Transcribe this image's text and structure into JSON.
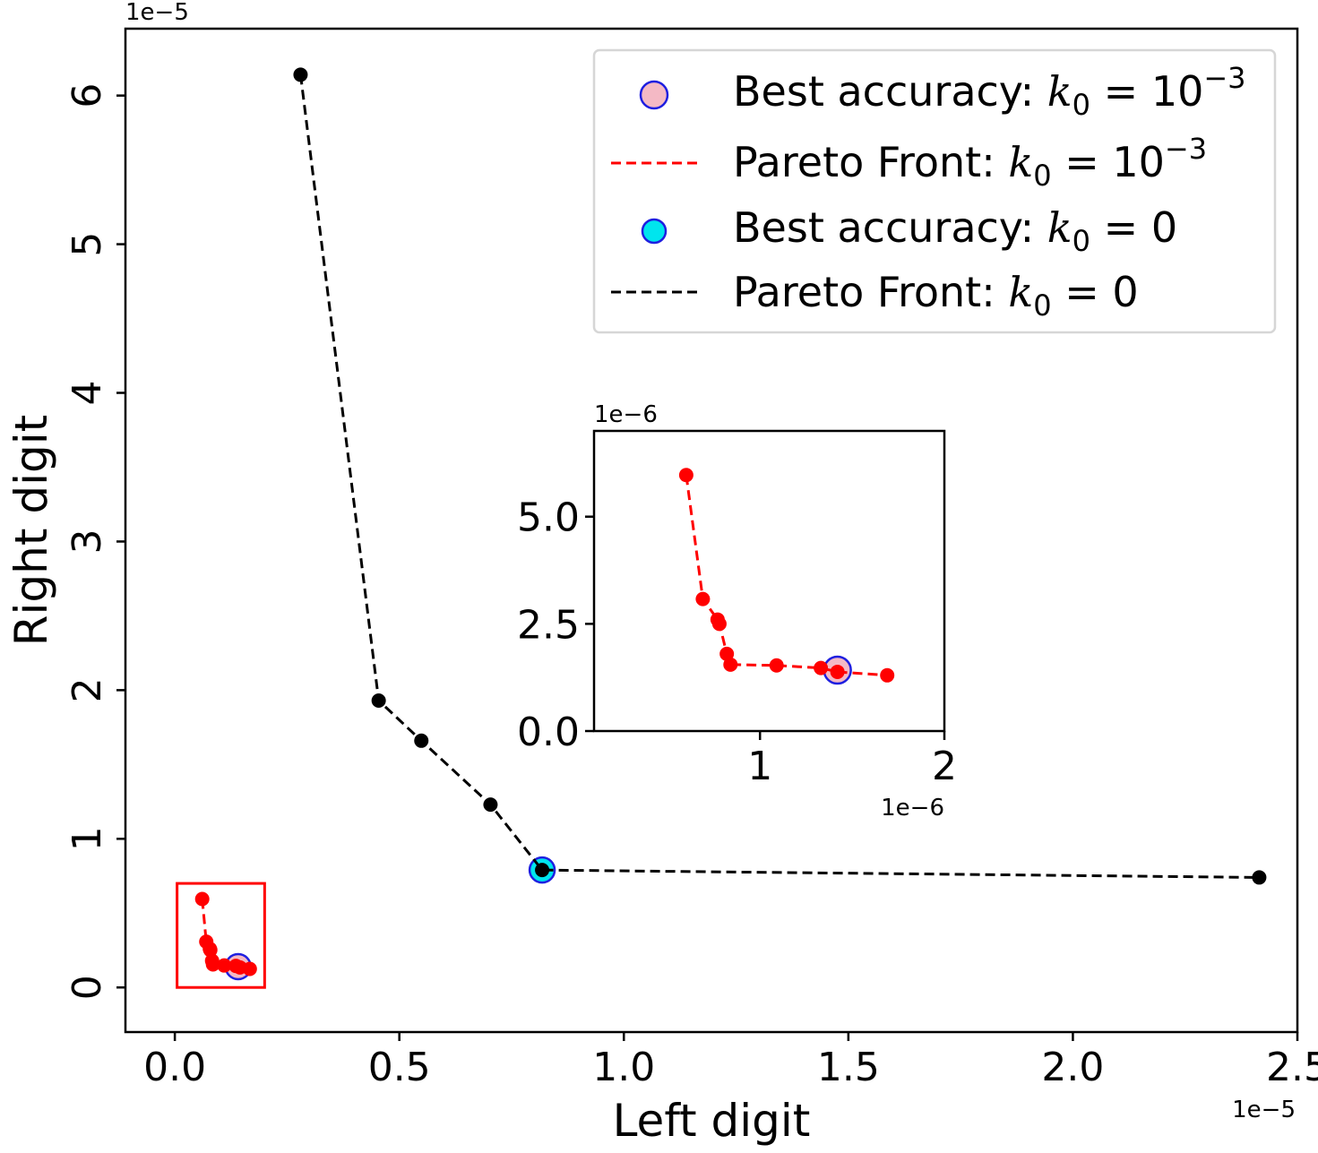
{
  "chart_data": [
    {
      "type": "line",
      "xlabel": "Left digit",
      "ylabel": "Right digit",
      "x_scale_label": "1e−5",
      "y_scale_label": "1e−5",
      "xlim": [
        -0.11,
        2.5
      ],
      "ylim": [
        -0.3,
        6.45
      ],
      "xticks": [
        0.0,
        0.5,
        1.0,
        1.5,
        2.0,
        2.5
      ],
      "xtick_labels": [
        "0.0",
        "0.5",
        "1.0",
        "1.5",
        "2.0",
        "2.5"
      ],
      "yticks": [
        0,
        1,
        2,
        3,
        4,
        5,
        6
      ],
      "ytick_labels": [
        "0",
        "1",
        "2",
        "3",
        "4",
        "5",
        "6"
      ],
      "series": [
        {
          "name": "Pareto Front: k0 = 0",
          "color": "#000000",
          "style": "dashed",
          "x": [
            0.28,
            0.454,
            0.549,
            0.703,
            0.818,
            2.415
          ],
          "y": [
            6.14,
            1.93,
            1.66,
            1.23,
            0.79,
            0.74
          ]
        },
        {
          "name": "Pareto Front: k0 = 10^-3",
          "color": "#ff0000",
          "style": "dashed",
          "x": [
            0.061,
            0.07,
            0.078,
            0.079,
            0.083,
            0.085,
            0.11,
            0.136,
            0.145,
            0.167
          ],
          "y": [
            0.595,
            0.308,
            0.26,
            0.252,
            0.18,
            0.155,
            0.148,
            0.145,
            0.135,
            0.125
          ]
        }
      ],
      "highlights": [
        {
          "name": "Best accuracy: k0 = 10^-3",
          "x": 0.141,
          "y": 0.14,
          "face": "#f4b9c5",
          "edge": "#1f1fe0"
        },
        {
          "name": "Best accuracy: k0 = 0",
          "x": 0.818,
          "y": 0.79,
          "face": "#00e5ee",
          "edge": "#1f1fe0"
        }
      ],
      "zoom_box": {
        "x": [
          0.005,
          0.2
        ],
        "y": [
          0.0,
          0.7
        ],
        "color": "#ff0000"
      }
    },
    {
      "type": "line",
      "role": "inset",
      "x_scale_label": "1e−6",
      "y_scale_label": "1e−6",
      "xlim": [
        0.1,
        2.0
      ],
      "ylim": [
        0.0,
        7.0
      ],
      "xticks": [
        1,
        2
      ],
      "xtick_labels": [
        "1",
        "2"
      ],
      "yticks": [
        0.0,
        2.5,
        5.0
      ],
      "ytick_labels": [
        "0.0",
        "2.5",
        "5.0"
      ],
      "series": [
        {
          "name": "Pareto Front: k0 = 10^-3",
          "color": "#ff0000",
          "style": "dashed",
          "x": [
            0.6,
            0.69,
            0.77,
            0.78,
            0.82,
            0.84,
            1.09,
            1.33,
            1.42,
            1.69
          ],
          "y": [
            5.97,
            3.08,
            2.6,
            2.5,
            1.8,
            1.55,
            1.53,
            1.47,
            1.38,
            1.3
          ]
        }
      ],
      "highlights": [
        {
          "name": "Best accuracy: k0 = 10^-3",
          "x": 1.42,
          "y": 1.42,
          "face": "#f4b9c5",
          "edge": "#1f1fe0"
        }
      ]
    }
  ],
  "legend": {
    "position": "top-right",
    "items": [
      {
        "kind": "marker",
        "face": "#f4b9c5",
        "edge": "#1f1fe0",
        "prefix": "Best accuracy: ",
        "sym": "k",
        "sub": "0",
        "rest": " = 10",
        "sup": "−3"
      },
      {
        "kind": "line",
        "color": "#ff0000",
        "prefix": "Pareto Front:  ",
        "sym": "k",
        "sub": "0",
        "rest": " = 10",
        "sup": "−3"
      },
      {
        "kind": "marker",
        "face": "#00e5ee",
        "edge": "#1f1fe0",
        "prefix": "Best accuracy: ",
        "sym": "k",
        "sub": "0",
        "rest": " = 0",
        "sup": ""
      },
      {
        "kind": "line",
        "color": "#000000",
        "prefix": "Pareto Front: ",
        "sym": "k",
        "sub": "0",
        "rest": " = 0",
        "sup": ""
      }
    ]
  }
}
